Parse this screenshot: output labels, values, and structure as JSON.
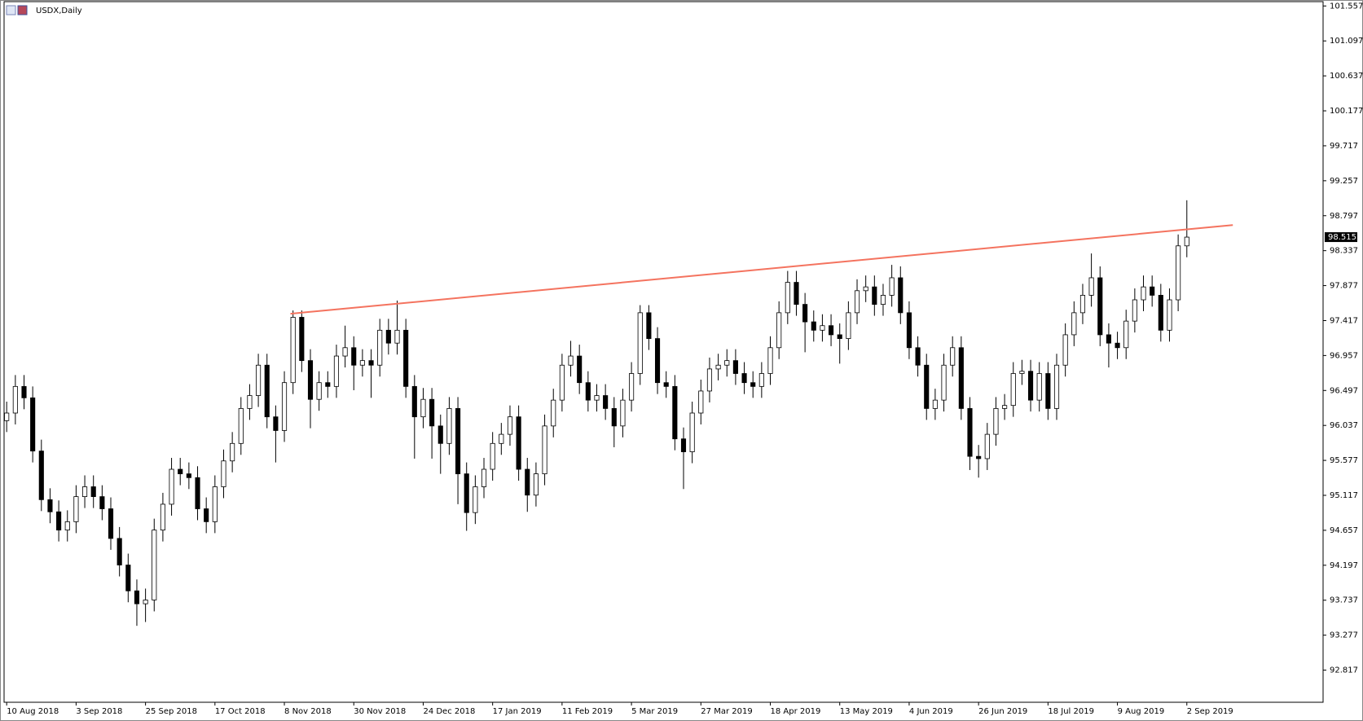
{
  "chart_data": {
    "type": "candlestick",
    "title": "USDX,Daily",
    "up_color": "#ffffff",
    "down_color": "#000000",
    "outline_color": "#000000",
    "open": [
      96.1,
      96.2,
      96.55,
      96.4,
      95.7,
      95.06,
      94.9,
      94.66,
      94.77,
      95.1,
      95.23,
      95.1,
      94.94,
      94.55,
      94.2,
      93.86,
      93.69,
      93.74,
      94.66,
      95.0,
      95.46,
      95.4,
      95.35,
      94.94,
      94.77,
      95.23,
      95.57,
      95.8,
      96.26,
      96.43,
      96.83,
      96.15,
      95.97,
      96.6,
      97.46,
      96.89,
      96.38,
      96.6,
      96.55,
      96.95,
      97.06,
      96.83,
      96.89,
      96.83,
      97.29,
      97.12,
      97.29,
      96.55,
      96.15,
      96.38,
      96.03,
      95.8,
      96.26,
      95.4,
      94.89,
      95.23,
      95.46,
      95.8,
      95.92,
      96.15,
      95.46,
      95.12,
      95.4,
      96.03,
      96.37,
      96.83,
      96.95,
      96.6,
      96.37,
      96.43,
      96.26,
      96.03,
      96.37,
      96.72,
      97.52,
      97.18,
      96.6,
      96.55,
      95.86,
      95.69,
      96.2,
      96.49,
      96.78,
      96.83,
      96.89,
      96.72,
      96.6,
      96.55,
      96.72,
      97.06,
      97.52,
      97.92,
      97.63,
      97.4,
      97.29,
      97.35,
      97.23,
      97.18,
      97.52,
      97.81,
      97.86,
      97.63,
      97.75,
      97.98,
      97.52,
      97.06,
      96.83,
      96.26,
      96.37,
      96.83,
      97.06,
      96.26,
      95.63,
      95.6,
      95.92,
      96.26,
      96.3,
      96.72,
      96.75,
      96.37,
      96.72,
      96.26,
      96.83,
      97.23,
      97.52,
      97.75,
      97.98,
      97.23,
      97.12,
      97.06,
      97.41,
      97.69,
      97.86,
      97.75,
      97.29,
      97.69,
      98.4
    ],
    "high": [
      96.35,
      96.7,
      96.7,
      96.55,
      95.85,
      95.21,
      95.05,
      94.92,
      95.25,
      95.38,
      95.38,
      95.25,
      95.09,
      94.7,
      94.35,
      94.01,
      93.89,
      94.81,
      95.15,
      95.61,
      95.61,
      95.55,
      95.5,
      95.09,
      95.38,
      95.72,
      95.95,
      96.41,
      96.58,
      96.98,
      96.98,
      96.3,
      96.75,
      97.55,
      97.55,
      97.04,
      96.75,
      96.75,
      97.1,
      97.35,
      97.21,
      97.04,
      97.04,
      97.44,
      97.44,
      97.68,
      97.44,
      96.7,
      96.53,
      96.53,
      96.18,
      96.41,
      96.41,
      95.55,
      95.38,
      95.61,
      95.95,
      96.07,
      96.3,
      96.3,
      95.61,
      95.55,
      96.18,
      96.52,
      96.98,
      97.15,
      97.1,
      96.75,
      96.58,
      96.58,
      96.41,
      96.52,
      96.87,
      97.62,
      97.62,
      97.33,
      96.75,
      96.7,
      96.01,
      96.35,
      96.64,
      96.93,
      96.98,
      97.04,
      97.04,
      96.87,
      96.75,
      96.87,
      97.21,
      97.67,
      98.07,
      98.07,
      97.78,
      97.55,
      97.5,
      97.5,
      97.38,
      97.67,
      97.96,
      98.01,
      98.01,
      97.9,
      98.15,
      98.13,
      97.67,
      97.21,
      96.98,
      96.52,
      96.98,
      97.21,
      97.21,
      96.41,
      95.78,
      96.07,
      96.41,
      96.45,
      96.87,
      96.9,
      96.9,
      96.87,
      96.87,
      96.98,
      97.38,
      97.67,
      97.9,
      98.3,
      98.13,
      97.38,
      97.27,
      97.56,
      97.84,
      98.01,
      98.01,
      97.9,
      97.84,
      98.55,
      99.0
    ],
    "low": [
      95.95,
      96.05,
      96.25,
      95.55,
      94.91,
      94.75,
      94.51,
      94.51,
      94.62,
      94.95,
      94.95,
      94.79,
      94.4,
      94.05,
      93.71,
      93.4,
      93.45,
      93.59,
      94.51,
      94.85,
      95.25,
      95.2,
      94.79,
      94.62,
      94.62,
      95.08,
      95.42,
      95.65,
      96.11,
      96.28,
      96.0,
      95.55,
      95.82,
      96.45,
      96.74,
      96.0,
      96.23,
      96.4,
      96.4,
      96.8,
      96.5,
      96.68,
      96.4,
      96.68,
      96.97,
      96.97,
      96.4,
      95.6,
      96.0,
      95.6,
      95.4,
      95.65,
      95.0,
      94.65,
      94.74,
      95.08,
      95.31,
      95.65,
      95.77,
      95.31,
      94.9,
      94.97,
      95.25,
      95.88,
      96.22,
      96.68,
      96.45,
      96.22,
      96.22,
      96.11,
      95.75,
      95.88,
      96.22,
      96.57,
      97.03,
      96.45,
      96.4,
      95.71,
      95.2,
      95.54,
      96.05,
      96.34,
      96.63,
      96.68,
      96.57,
      96.45,
      96.4,
      96.4,
      96.57,
      96.91,
      97.37,
      97.48,
      97.0,
      97.14,
      97.14,
      97.08,
      96.85,
      97.03,
      97.37,
      97.66,
      97.48,
      97.48,
      97.6,
      97.37,
      96.91,
      96.68,
      96.11,
      96.11,
      96.22,
      96.68,
      96.11,
      95.45,
      95.35,
      95.45,
      95.77,
      96.11,
      96.15,
      96.57,
      96.22,
      96.22,
      96.11,
      96.11,
      96.68,
      97.08,
      97.37,
      97.6,
      97.08,
      96.8,
      96.91,
      96.91,
      97.26,
      97.54,
      97.6,
      97.14,
      97.14,
      97.54,
      98.25
    ],
    "close": [
      96.2,
      96.55,
      96.4,
      95.7,
      95.06,
      94.9,
      94.66,
      94.77,
      95.1,
      95.23,
      95.1,
      94.94,
      94.55,
      94.2,
      93.86,
      93.69,
      93.74,
      94.66,
      95.0,
      95.46,
      95.4,
      95.35,
      94.94,
      94.77,
      95.23,
      95.57,
      95.8,
      96.26,
      96.43,
      96.83,
      96.15,
      95.97,
      96.6,
      97.46,
      96.89,
      96.38,
      96.6,
      96.55,
      96.95,
      97.06,
      96.83,
      96.89,
      96.83,
      97.29,
      97.12,
      97.29,
      96.55,
      96.15,
      96.38,
      96.03,
      95.8,
      96.26,
      95.4,
      94.89,
      95.23,
      95.46,
      95.8,
      95.92,
      96.15,
      95.46,
      95.12,
      95.4,
      96.03,
      96.37,
      96.83,
      96.95,
      96.6,
      96.37,
      96.43,
      96.26,
      96.03,
      96.37,
      96.72,
      97.52,
      97.18,
      96.6,
      96.55,
      95.86,
      95.69,
      96.2,
      96.49,
      96.78,
      96.83,
      96.89,
      96.72,
      96.6,
      96.55,
      96.72,
      97.06,
      97.52,
      97.92,
      97.63,
      97.4,
      97.29,
      97.35,
      97.23,
      97.18,
      97.52,
      97.81,
      97.86,
      97.63,
      97.75,
      97.98,
      97.52,
      97.06,
      96.83,
      96.26,
      96.37,
      96.83,
      97.06,
      96.26,
      95.63,
      95.6,
      95.92,
      96.26,
      96.3,
      96.72,
      96.75,
      96.37,
      96.72,
      96.26,
      96.83,
      97.23,
      97.52,
      97.75,
      97.98,
      97.23,
      97.12,
      97.06,
      97.41,
      97.69,
      97.86,
      97.75,
      97.29,
      97.69,
      98.4,
      98.515
    ],
    "xlim": [
      -0.3,
      151.7
    ],
    "xticks": [
      {
        "value": 0,
        "label": "10 Aug 2018"
      },
      {
        "value": 8,
        "label": "3 Sep 2018"
      },
      {
        "value": 16,
        "label": "25 Sep 2018"
      },
      {
        "value": 24,
        "label": "17 Oct 2018"
      },
      {
        "value": 32,
        "label": "8 Nov 2018"
      },
      {
        "value": 40,
        "label": "30 Nov 2018"
      },
      {
        "value": 48,
        "label": "24 Dec 2018"
      },
      {
        "value": 56,
        "label": "17 Jan 2019"
      },
      {
        "value": 64,
        "label": "11 Feb 2019"
      },
      {
        "value": 72,
        "label": "5 Mar 2019"
      },
      {
        "value": 80,
        "label": "27 Mar 2019"
      },
      {
        "value": 88,
        "label": "18 Apr 2019"
      },
      {
        "value": 96,
        "label": "13 May 2019"
      },
      {
        "value": 104,
        "label": "4 Jun 2019"
      },
      {
        "value": 112,
        "label": "26 Jun 2019"
      },
      {
        "value": 120,
        "label": "18 Jul 2019"
      },
      {
        "value": 128,
        "label": "9 Aug 2019"
      },
      {
        "value": 136,
        "label": "2 Sep 2019"
      }
    ],
    "ylim": [
      92.394,
      101.614
    ],
    "yticks": [
      101.557,
      101.097,
      100.637,
      100.177,
      99.717,
      99.257,
      98.797,
      98.337,
      97.877,
      97.417,
      96.957,
      96.497,
      96.037,
      95.577,
      95.117,
      94.657,
      94.197,
      93.737,
      93.277,
      92.817
    ],
    "trendline": {
      "x": [
        32.7,
        141.3
      ],
      "y": [
        97.507,
        98.674
      ],
      "color": "#f4735f"
    }
  }
}
